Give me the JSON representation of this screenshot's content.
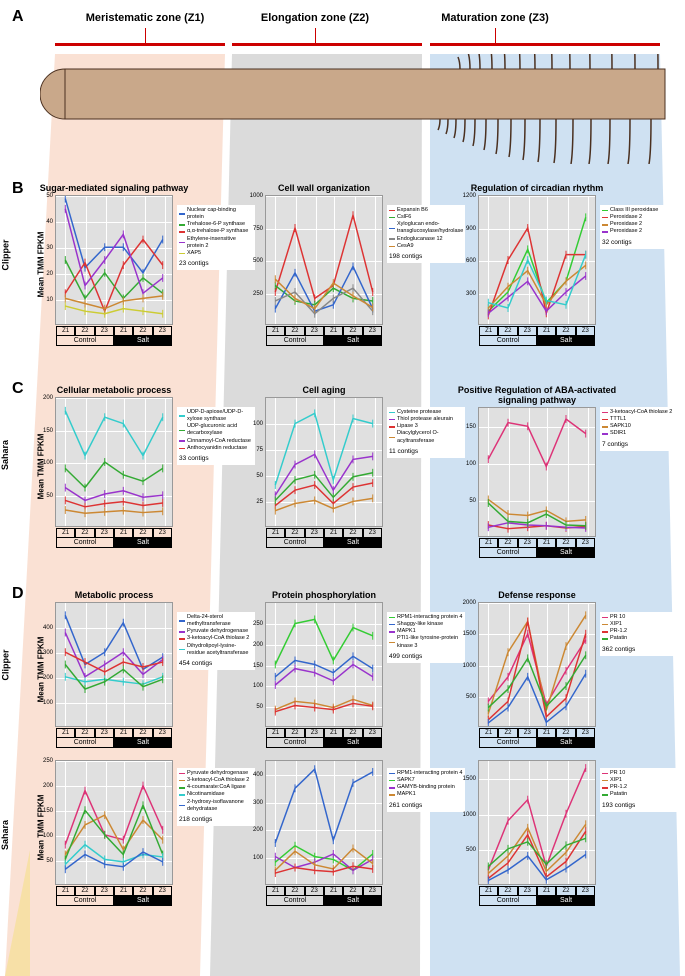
{
  "panels": {
    "A": "A",
    "B": "B",
    "C": "C",
    "D": "D"
  },
  "zones": {
    "z1": "Meristematic zone (Z1)",
    "z2": "Elongation zone (Z2)",
    "z3": "Maturation zone (Z3)"
  },
  "rowLabels": {
    "clipper": "Clipper",
    "sahara": "Sahara"
  },
  "yAxisLabel": "Mean TMM FPKM",
  "xTicks": [
    "Z1",
    "Z2",
    "Z3"
  ],
  "xConds": [
    "Control",
    "Salt"
  ],
  "wedgeColors": {
    "z1": "#f5c9b0",
    "z2": "#b8b8b8",
    "z3": "#a8c8e8"
  },
  "rootColor": "#c9a88a",
  "charts": {
    "B1": {
      "title": "Sugar-mediated signaling pathway",
      "ylim": [
        0,
        50
      ],
      "yticks": [
        10,
        20,
        30,
        40,
        50
      ],
      "legend": [
        {
          "label": "Nuclear cap-binding protein",
          "color": "#3366cc"
        },
        {
          "label": "Trehalose-6-P synthase",
          "color": "#33aa33"
        },
        {
          "label": "α,α-trehalose-P synthase",
          "color": "#dd3333"
        },
        {
          "label": "Ethylene-insensitive protein 2",
          "color": "#9933cc"
        },
        {
          "label": "XAP5",
          "color": "#cccc33"
        }
      ],
      "contigs": "23 contigs",
      "series": [
        {
          "color": "#3366cc",
          "values": [
            49,
            22,
            30,
            30,
            20,
            33
          ]
        },
        {
          "color": "#33aa33",
          "values": [
            25,
            10,
            20,
            10,
            18,
            12
          ]
        },
        {
          "color": "#dd3333",
          "values": [
            12,
            24,
            5,
            23,
            33,
            23
          ]
        },
        {
          "color": "#9933cc",
          "values": [
            45,
            15,
            25,
            35,
            12,
            18
          ]
        },
        {
          "color": "#cccc33",
          "values": [
            7,
            5,
            4,
            6,
            5,
            4
          ]
        },
        {
          "color": "#cc8833",
          "values": [
            10,
            8,
            6,
            9,
            10,
            11
          ]
        }
      ]
    },
    "B2": {
      "title": "Cell wall organization",
      "ylim": [
        0,
        1000
      ],
      "yticks": [
        250,
        500,
        750,
        1000
      ],
      "legend": [
        {
          "label": "Expansin B6",
          "color": "#dd3333"
        },
        {
          "label": "CslF6",
          "color": "#33aa33"
        },
        {
          "label": "Xyloglucan endo-transglucosylase/hydrolase",
          "color": "#3366cc"
        },
        {
          "label": "Endoglucanase 12",
          "color": "#888888"
        },
        {
          "label": "CesA9",
          "color": "#cc8833"
        }
      ],
      "contigs": "198 contigs",
      "series": [
        {
          "color": "#dd3333",
          "values": [
            250,
            750,
            200,
            300,
            850,
            250
          ]
        },
        {
          "color": "#33aa33",
          "values": [
            300,
            180,
            150,
            280,
            200,
            180
          ]
        },
        {
          "color": "#3366cc",
          "values": [
            120,
            400,
            100,
            150,
            450,
            120
          ]
        },
        {
          "color": "#888888",
          "values": [
            180,
            250,
            80,
            200,
            280,
            100
          ]
        },
        {
          "color": "#cc8833",
          "values": [
            350,
            200,
            120,
            320,
            220,
            130
          ]
        }
      ]
    },
    "B3": {
      "title": "Regulation of circadian rhythm",
      "ylim": [
        0,
        1200
      ],
      "yticks": [
        300,
        600,
        900,
        1200
      ],
      "legend": [
        {
          "label": "Class III peroxidase",
          "color": "#33cc33"
        },
        {
          "label": "Peroxidase 2",
          "color": "#dd3333"
        },
        {
          "label": "Peroxidase 2",
          "color": "#cc8833"
        },
        {
          "label": "Peroxidase 2",
          "color": "#9933cc"
        }
      ],
      "contigs": "32 contigs",
      "series": [
        {
          "color": "#33cc33",
          "values": [
            120,
            300,
            700,
            200,
            400,
            1000
          ]
        },
        {
          "color": "#dd3333",
          "values": [
            80,
            600,
            900,
            100,
            650,
            650
          ]
        },
        {
          "color": "#cc8833",
          "values": [
            150,
            350,
            500,
            180,
            400,
            550
          ]
        },
        {
          "color": "#9933cc",
          "values": [
            100,
            250,
            400,
            120,
            300,
            450
          ]
        },
        {
          "color": "#33cccc",
          "values": [
            200,
            150,
            600,
            220,
            180,
            650
          ]
        }
      ]
    },
    "C1": {
      "title": "Cellular metabolic process",
      "ylim": [
        0,
        200
      ],
      "yticks": [
        50,
        100,
        150,
        200
      ],
      "legend": [
        {
          "label": "UDP-D-apiose/UDP-D-xylose synthase",
          "color": "#33cccc"
        },
        {
          "label": "UDP-glucuronic acid decarboxylase",
          "color": "#33aa33"
        },
        {
          "label": "Cinnamoyl-CoA reductase",
          "color": "#9933cc"
        },
        {
          "label": "Anthocyanidin reductase",
          "color": "#dd3333"
        }
      ],
      "contigs": "33 contigs",
      "series": [
        {
          "color": "#33cccc",
          "values": [
            180,
            110,
            170,
            160,
            110,
            170
          ]
        },
        {
          "color": "#33aa33",
          "values": [
            90,
            60,
            100,
            80,
            70,
            90
          ]
        },
        {
          "color": "#9933cc",
          "values": [
            60,
            40,
            50,
            55,
            45,
            48
          ]
        },
        {
          "color": "#dd3333",
          "values": [
            40,
            30,
            35,
            38,
            32,
            36
          ]
        },
        {
          "color": "#cc8833",
          "values": [
            25,
            20,
            22,
            24,
            21,
            23
          ]
        }
      ]
    },
    "C2": {
      "title": "Cell aging",
      "ylim": [
        0,
        125
      ],
      "yticks": [
        25,
        50,
        75,
        100
      ],
      "legend": [
        {
          "label": "Cysteine protease",
          "color": "#33cccc"
        },
        {
          "label": "Thiol protease aleurain",
          "color": "#9933cc"
        },
        {
          "label": "Lipase 3",
          "color": "#dd3333"
        },
        {
          "label": "Diacylglycerol O-acyltransferase",
          "color": "#cc8833"
        }
      ],
      "contigs": "11 contigs",
      "series": [
        {
          "color": "#33cccc",
          "values": [
            40,
            100,
            110,
            45,
            105,
            100
          ]
        },
        {
          "color": "#9933cc",
          "values": [
            30,
            60,
            70,
            35,
            65,
            68
          ]
        },
        {
          "color": "#dd3333",
          "values": [
            20,
            35,
            40,
            22,
            38,
            42
          ]
        },
        {
          "color": "#33aa33",
          "values": [
            25,
            45,
            50,
            28,
            48,
            52
          ]
        },
        {
          "color": "#cc8833",
          "values": [
            15,
            22,
            25,
            17,
            24,
            27
          ]
        }
      ]
    },
    "C3": {
      "title": "Positive Regulation of ABA-activated signaling pathway",
      "ylim": [
        0,
        175
      ],
      "yticks": [
        50,
        100,
        150
      ],
      "legend": [
        {
          "label": "3-ketoacyl-CoA thiolase 2",
          "color": "#dd3377"
        },
        {
          "label": "TTTL1",
          "color": "#dd3333"
        },
        {
          "label": "SAPK10",
          "color": "#cc8833"
        },
        {
          "label": "SDIR1",
          "color": "#9933cc"
        }
      ],
      "contigs": "7 contigs",
      "series": [
        {
          "color": "#dd3377",
          "values": [
            105,
            155,
            150,
            95,
            160,
            140
          ]
        },
        {
          "color": "#dd3333",
          "values": [
            15,
            10,
            12,
            14,
            11,
            13
          ]
        },
        {
          "color": "#cc8833",
          "values": [
            50,
            30,
            28,
            35,
            20,
            22
          ]
        },
        {
          "color": "#9933cc",
          "values": [
            12,
            18,
            15,
            14,
            12,
            11
          ]
        },
        {
          "color": "#33aa33",
          "values": [
            45,
            20,
            18,
            30,
            15,
            14
          ]
        }
      ]
    },
    "D1a": {
      "title": "Metabolic process",
      "ylim": [
        0,
        500
      ],
      "yticks": [
        100,
        200,
        300,
        400
      ],
      "legend": [
        {
          "label": "Delta-24-sterol methyltransferase",
          "color": "#3366cc"
        },
        {
          "label": "Pyruvate dehydrogenase",
          "color": "#9933cc"
        },
        {
          "label": "3-ketoacyl-CoA thiolase 2",
          "color": "#dd3333"
        },
        {
          "label": "Dihydrolipoyl-lysine-residue acetyltransferase",
          "color": "#33cccc"
        }
      ],
      "contigs": "454 contigs",
      "series": [
        {
          "color": "#3366cc",
          "values": [
            450,
            250,
            300,
            420,
            230,
            280
          ]
        },
        {
          "color": "#9933cc",
          "values": [
            380,
            200,
            250,
            300,
            210,
            270
          ]
        },
        {
          "color": "#dd3333",
          "values": [
            300,
            260,
            220,
            260,
            240,
            260
          ]
        },
        {
          "color": "#33cccc",
          "values": [
            200,
            180,
            190,
            180,
            170,
            200
          ]
        },
        {
          "color": "#33aa33",
          "values": [
            250,
            150,
            180,
            230,
            160,
            190
          ]
        }
      ]
    },
    "D1b": {
      "ylim": [
        0,
        250
      ],
      "yticks": [
        50,
        100,
        150,
        200,
        250
      ],
      "legend": [
        {
          "label": "Pyruvate dehydrogenase",
          "color": "#dd3377"
        },
        {
          "label": "3-ketoacyl-CoA thiolase 2",
          "color": "#cc8833"
        },
        {
          "label": "4-coumarate:CoA ligase",
          "color": "#33aa33"
        },
        {
          "label": "Nicotinamidase",
          "color": "#33cccc"
        },
        {
          "label": "2-hydroxy-isoflavanone dehydratase",
          "color": "#3366cc"
        }
      ],
      "contigs": "218 contigs",
      "series": [
        {
          "color": "#dd3377",
          "values": [
            80,
            190,
            100,
            90,
            200,
            110
          ]
        },
        {
          "color": "#cc8833",
          "values": [
            60,
            120,
            140,
            70,
            130,
            90
          ]
        },
        {
          "color": "#33aa33",
          "values": [
            50,
            150,
            100,
            60,
            160,
            60
          ]
        },
        {
          "color": "#33cccc",
          "values": [
            40,
            80,
            50,
            45,
            60,
            55
          ]
        },
        {
          "color": "#3366cc",
          "values": [
            30,
            60,
            40,
            35,
            65,
            45
          ]
        }
      ]
    },
    "D2a": {
      "title": "Protein phosphorylation",
      "ylim": [
        0,
        300
      ],
      "yticks": [
        50,
        100,
        150,
        200,
        250
      ],
      "legend": [
        {
          "label": "RPM1-interacting protein 4",
          "color": "#33cc33"
        },
        {
          "label": "Shaggy-like kinase",
          "color": "#3366cc"
        },
        {
          "label": "MAPK1",
          "color": "#9933cc"
        },
        {
          "label": "PTI1-like tyrosine-protein kinase 3",
          "color": "#cc8833"
        }
      ],
      "contigs": "499 contigs",
      "series": [
        {
          "color": "#33cc33",
          "values": [
            150,
            250,
            260,
            160,
            240,
            220
          ]
        },
        {
          "color": "#3366cc",
          "values": [
            120,
            160,
            150,
            130,
            170,
            140
          ]
        },
        {
          "color": "#9933cc",
          "values": [
            100,
            140,
            130,
            110,
            150,
            120
          ]
        },
        {
          "color": "#cc8833",
          "values": [
            40,
            60,
            55,
            45,
            65,
            50
          ]
        },
        {
          "color": "#dd3333",
          "values": [
            35,
            50,
            45,
            40,
            55,
            48
          ]
        }
      ]
    },
    "D2b": {
      "ylim": [
        0,
        450
      ],
      "yticks": [
        100,
        200,
        300,
        400
      ],
      "legend": [
        {
          "label": "RPM1-interacting protein 4",
          "color": "#3366cc"
        },
        {
          "label": "SAPK7",
          "color": "#33cc33"
        },
        {
          "label": "GAMYB-binding protein",
          "color": "#9933cc"
        },
        {
          "label": "MAPK1",
          "color": "#cc8833"
        }
      ],
      "contigs": "261 contigs",
      "series": [
        {
          "color": "#3366cc",
          "values": [
            150,
            350,
            420,
            160,
            370,
            410
          ]
        },
        {
          "color": "#33cc33",
          "values": [
            80,
            140,
            100,
            90,
            50,
            110
          ]
        },
        {
          "color": "#9933cc",
          "values": [
            100,
            60,
            80,
            110,
            50,
            90
          ]
        },
        {
          "color": "#cc8833",
          "values": [
            50,
            120,
            70,
            55,
            130,
            75
          ]
        },
        {
          "color": "#dd3333",
          "values": [
            40,
            60,
            50,
            45,
            65,
            55
          ]
        }
      ]
    },
    "D3a": {
      "title": "Defense response",
      "ylim": [
        0,
        2000
      ],
      "yticks": [
        500,
        1000,
        1500,
        2000
      ],
      "legend": [
        {
          "label": "PR 10",
          "color": "#dd3377"
        },
        {
          "label": "XIP1",
          "color": "#cc8833"
        },
        {
          "label": "PR-1.2",
          "color": "#dd3333"
        },
        {
          "label": "Patatin",
          "color": "#33aa33"
        }
      ],
      "contigs": "362 contigs",
      "series": [
        {
          "color": "#dd3377",
          "values": [
            400,
            800,
            1500,
            350,
            900,
            1400
          ]
        },
        {
          "color": "#cc8833",
          "values": [
            200,
            1200,
            1700,
            250,
            1300,
            1800
          ]
        },
        {
          "color": "#dd3333",
          "values": [
            100,
            400,
            1700,
            150,
            450,
            1500
          ]
        },
        {
          "color": "#33aa33",
          "values": [
            300,
            600,
            1100,
            320,
            650,
            1150
          ]
        },
        {
          "color": "#3366cc",
          "values": [
            50,
            300,
            800,
            60,
            320,
            850
          ]
        }
      ]
    },
    "D3b": {
      "ylim": [
        0,
        1750
      ],
      "yticks": [
        500,
        1000,
        1500
      ],
      "legend": [
        {
          "label": "PR 10",
          "color": "#dd3377"
        },
        {
          "label": "XIP1",
          "color": "#cc8833"
        },
        {
          "label": "PR-1.2",
          "color": "#dd3333"
        },
        {
          "label": "Patatin",
          "color": "#33aa33"
        }
      ],
      "contigs": "193 contigs",
      "series": [
        {
          "color": "#dd3377",
          "values": [
            200,
            900,
            1200,
            250,
            1000,
            1650
          ]
        },
        {
          "color": "#cc8833",
          "values": [
            150,
            400,
            800,
            180,
            450,
            850
          ]
        },
        {
          "color": "#dd3333",
          "values": [
            80,
            300,
            700,
            100,
            320,
            750
          ]
        },
        {
          "color": "#33aa33",
          "values": [
            250,
            500,
            600,
            280,
            550,
            650
          ]
        },
        {
          "color": "#3366cc",
          "values": [
            50,
            200,
            400,
            60,
            220,
            420
          ]
        }
      ]
    }
  }
}
